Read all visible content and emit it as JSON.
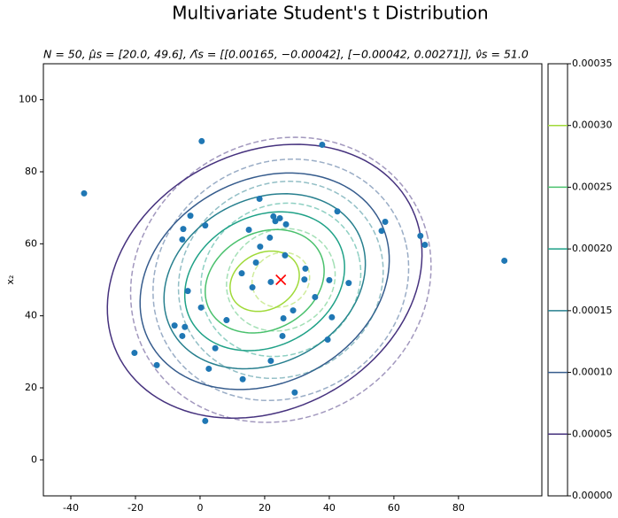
{
  "chart_data": {
    "type": "contour",
    "title": "Multivariate Student's t Distribution",
    "subtitle": "N = 50, μ̂s = [20.0, 49.6], Λ̂s = [[0.00165, −0.00042], [−0.00042, 0.00271]], ν̂s = 51.0",
    "y_label": "x₂",
    "xlim": [
      -48.5,
      105.8
    ],
    "ylim": [
      -10,
      110
    ],
    "xticks": [
      -40,
      -20,
      0,
      20,
      40,
      60,
      80
    ],
    "yticks": [
      0,
      20,
      40,
      60,
      80,
      100
    ],
    "points": {
      "color": "#1f77b4",
      "x": [
        -35.9,
        0.5,
        37.8,
        18.4,
        -3.0,
        -5.2,
        -5.5,
        1.6,
        42.5,
        22.7,
        24.7,
        23.3,
        26.6,
        15.1,
        21.6,
        57.3,
        56.2,
        68.2,
        69.6,
        94.2,
        18.6,
        26.3,
        17.3,
        32.6,
        12.9,
        32.3,
        21.9,
        40.0,
        46.0,
        16.2,
        -3.8,
        35.6,
        0.3,
        28.8,
        40.8,
        25.8,
        8.2,
        -7.9,
        -4.7,
        -5.5,
        25.5,
        39.5,
        4.7,
        -20.3,
        21.9,
        -13.4,
        2.7,
        13.2,
        29.3,
        1.6
      ],
      "y": [
        74.0,
        88.5,
        87.5,
        72.5,
        67.8,
        64.1,
        61.2,
        65.1,
        69.0,
        67.6,
        67.1,
        66.3,
        65.4,
        63.9,
        61.7,
        66.1,
        63.6,
        62.2,
        59.7,
        55.3,
        59.2,
        56.8,
        54.8,
        53.1,
        51.8,
        50.1,
        49.4,
        49.9,
        49.1,
        47.9,
        46.9,
        45.2,
        42.3,
        41.5,
        39.6,
        39.3,
        38.8,
        37.3,
        36.9,
        34.4,
        34.4,
        33.4,
        31.0,
        29.7,
        27.5,
        26.3,
        25.3,
        22.4,
        18.7,
        10.8
      ]
    },
    "marker": {
      "x": 25,
      "y": 50,
      "color": "red"
    },
    "contours": [
      {
        "level": 5e-05,
        "color": "#46327e",
        "style": "solid",
        "cx": 20,
        "cy": 49.6,
        "rx": 50.0,
        "ry": 36.3,
        "angle": 19.2
      },
      {
        "level": 0.0001,
        "color": "#365c8d",
        "style": "solid",
        "cx": 20,
        "cy": 49.6,
        "rx": 39.6,
        "ry": 28.7,
        "angle": 19.2
      },
      {
        "level": 0.00015,
        "color": "#277f8e",
        "style": "solid",
        "cx": 20,
        "cy": 49.6,
        "rx": 32.0,
        "ry": 23.2,
        "angle": 19.2
      },
      {
        "level": 0.0002,
        "color": "#1fa187",
        "style": "solid",
        "cx": 20,
        "cy": 49.6,
        "rx": 25.4,
        "ry": 18.4,
        "angle": 19.2
      },
      {
        "level": 0.00025,
        "color": "#4ac16d",
        "style": "solid",
        "cx": 20,
        "cy": 49.6,
        "rx": 18.9,
        "ry": 13.7,
        "angle": 19.2
      },
      {
        "level": 0.0003,
        "color": "#a0da39",
        "style": "solid",
        "cx": 20,
        "cy": 49.6,
        "rx": 11.0,
        "ry": 8.0,
        "angle": 19.2
      },
      {
        "level": 5e-05,
        "color": "#46327e",
        "style": "dashed",
        "cx": 25,
        "cy": 50,
        "rx": 47,
        "ry": 39,
        "angle": 15
      },
      {
        "level": 0.0001,
        "color": "#365c8d",
        "style": "dashed",
        "cx": 25,
        "cy": 50,
        "rx": 40,
        "ry": 33,
        "angle": 15
      },
      {
        "level": 0.00015,
        "color": "#277f8e",
        "style": "dashed",
        "cx": 25,
        "cy": 50,
        "rx": 32,
        "ry": 27,
        "angle": 15
      },
      {
        "level": 0.0002,
        "color": "#1fa187",
        "style": "dashed",
        "cx": 25,
        "cy": 50,
        "rx": 25,
        "ry": 21,
        "angle": 15
      },
      {
        "level": 0.00025,
        "color": "#4ac16d",
        "style": "dashed",
        "cx": 25,
        "cy": 50,
        "rx": 17,
        "ry": 14,
        "angle": 15
      },
      {
        "level": 0.0003,
        "color": "#a0da39",
        "style": "dashed",
        "cx": 25,
        "cy": 50,
        "rx": 9,
        "ry": 7.5,
        "angle": 15
      }
    ],
    "cbar_lim": [
      0,
      0.00035
    ],
    "cbar_ticks": [
      {
        "value": 0,
        "label": "0.00000"
      },
      {
        "value": 5e-05,
        "label": "0.00005"
      },
      {
        "value": 0.0001,
        "label": "0.00010"
      },
      {
        "value": 0.00015,
        "label": "0.00015"
      },
      {
        "value": 0.0002,
        "label": "0.00020"
      },
      {
        "value": 0.00025,
        "label": "0.00025"
      },
      {
        "value": 0.0003,
        "label": "0.00030"
      },
      {
        "value": 0.00035,
        "label": "0.00035"
      }
    ]
  }
}
